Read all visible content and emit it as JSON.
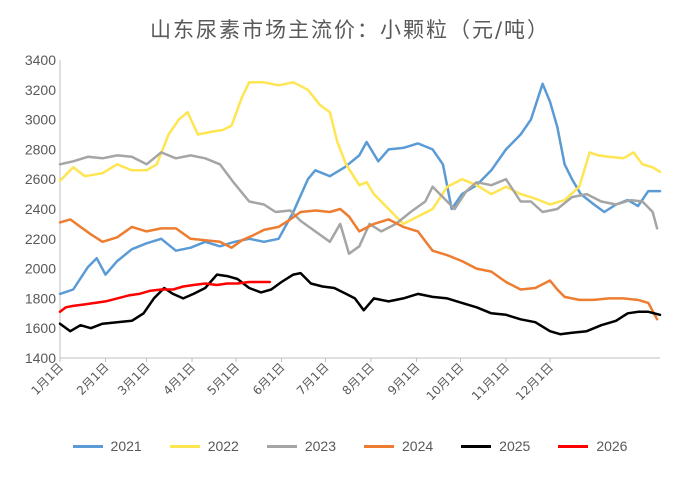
{
  "chart_data": {
    "type": "line",
    "title": "山东尿素市场主流价：小颗粒（元/吨）",
    "xlabel": "",
    "ylabel": "",
    "ylim": [
      1400,
      3400
    ],
    "yticks": [
      1400,
      1600,
      1800,
      2000,
      2200,
      2400,
      2600,
      2800,
      3000,
      3200,
      3400
    ],
    "x_categories": [
      "1月1日",
      "2月1日",
      "3月1日",
      "4月1日",
      "5月1日",
      "6月1日",
      "7月1日",
      "8月1日",
      "9月1日",
      "10月1日",
      "11月1日",
      "12月1日"
    ],
    "x_unit": "day_of_year",
    "grid": false,
    "legend_position": "bottom",
    "series": [
      {
        "name": "2021",
        "color": "#5B9BD5",
        "points": [
          [
            1,
            1830
          ],
          [
            10,
            1860
          ],
          [
            20,
            2010
          ],
          [
            26,
            2070
          ],
          [
            32,
            1960
          ],
          [
            40,
            2050
          ],
          [
            50,
            2130
          ],
          [
            60,
            2170
          ],
          [
            70,
            2200
          ],
          [
            80,
            2120
          ],
          [
            90,
            2140
          ],
          [
            100,
            2180
          ],
          [
            110,
            2150
          ],
          [
            120,
            2180
          ],
          [
            130,
            2200
          ],
          [
            140,
            2180
          ],
          [
            150,
            2200
          ],
          [
            160,
            2380
          ],
          [
            170,
            2600
          ],
          [
            175,
            2660
          ],
          [
            185,
            2620
          ],
          [
            195,
            2680
          ],
          [
            205,
            2760
          ],
          [
            210,
            2850
          ],
          [
            218,
            2720
          ],
          [
            225,
            2800
          ],
          [
            235,
            2810
          ],
          [
            245,
            2840
          ],
          [
            255,
            2800
          ],
          [
            262,
            2700
          ],
          [
            268,
            2400
          ],
          [
            275,
            2500
          ],
          [
            285,
            2560
          ],
          [
            295,
            2660
          ],
          [
            305,
            2800
          ],
          [
            315,
            2900
          ],
          [
            322,
            3000
          ],
          [
            330,
            3240
          ],
          [
            335,
            3120
          ],
          [
            340,
            2950
          ],
          [
            345,
            2700
          ],
          [
            350,
            2600
          ],
          [
            356,
            2500
          ],
          [
            365,
            2430
          ],
          [
            372,
            2380
          ],
          [
            380,
            2430
          ],
          [
            388,
            2460
          ],
          [
            395,
            2420
          ],
          [
            402,
            2520
          ],
          [
            410,
            2520
          ]
        ]
      },
      {
        "name": "2022",
        "color": "#FFE552",
        "points": [
          [
            1,
            2590
          ],
          [
            10,
            2680
          ],
          [
            18,
            2620
          ],
          [
            30,
            2640
          ],
          [
            40,
            2700
          ],
          [
            50,
            2660
          ],
          [
            60,
            2660
          ],
          [
            67,
            2700
          ],
          [
            75,
            2900
          ],
          [
            82,
            3000
          ],
          [
            88,
            3050
          ],
          [
            95,
            2900
          ],
          [
            105,
            2920
          ],
          [
            112,
            2930
          ],
          [
            118,
            2960
          ],
          [
            125,
            3150
          ],
          [
            130,
            3250
          ],
          [
            140,
            3250
          ],
          [
            150,
            3230
          ],
          [
            160,
            3250
          ],
          [
            170,
            3200
          ],
          [
            178,
            3100
          ],
          [
            185,
            3050
          ],
          [
            190,
            2850
          ],
          [
            196,
            2700
          ],
          [
            205,
            2560
          ],
          [
            210,
            2580
          ],
          [
            215,
            2500
          ],
          [
            225,
            2400
          ],
          [
            235,
            2300
          ],
          [
            245,
            2350
          ],
          [
            255,
            2400
          ],
          [
            265,
            2550
          ],
          [
            275,
            2600
          ],
          [
            285,
            2560
          ],
          [
            295,
            2500
          ],
          [
            305,
            2550
          ],
          [
            315,
            2500
          ],
          [
            325,
            2470
          ],
          [
            335,
            2430
          ],
          [
            345,
            2460
          ],
          [
            355,
            2550
          ],
          [
            362,
            2780
          ],
          [
            368,
            2760
          ],
          [
            375,
            2750
          ],
          [
            385,
            2740
          ],
          [
            392,
            2780
          ],
          [
            398,
            2700
          ],
          [
            405,
            2680
          ],
          [
            410,
            2650
          ]
        ]
      },
      {
        "name": "2023",
        "color": "#A5A5A5",
        "points": [
          [
            1,
            2700
          ],
          [
            10,
            2720
          ],
          [
            20,
            2750
          ],
          [
            30,
            2740
          ],
          [
            40,
            2760
          ],
          [
            50,
            2750
          ],
          [
            60,
            2700
          ],
          [
            70,
            2780
          ],
          [
            80,
            2740
          ],
          [
            90,
            2760
          ],
          [
            100,
            2740
          ],
          [
            110,
            2700
          ],
          [
            120,
            2570
          ],
          [
            130,
            2450
          ],
          [
            140,
            2430
          ],
          [
            148,
            2380
          ],
          [
            158,
            2390
          ],
          [
            165,
            2320
          ],
          [
            175,
            2250
          ],
          [
            185,
            2180
          ],
          [
            192,
            2300
          ],
          [
            198,
            2100
          ],
          [
            205,
            2150
          ],
          [
            212,
            2300
          ],
          [
            220,
            2250
          ],
          [
            230,
            2300
          ],
          [
            240,
            2380
          ],
          [
            250,
            2450
          ],
          [
            255,
            2550
          ],
          [
            262,
            2480
          ],
          [
            270,
            2400
          ],
          [
            278,
            2520
          ],
          [
            285,
            2580
          ],
          [
            295,
            2560
          ],
          [
            305,
            2600
          ],
          [
            315,
            2450
          ],
          [
            322,
            2450
          ],
          [
            330,
            2380
          ],
          [
            340,
            2400
          ],
          [
            350,
            2480
          ],
          [
            360,
            2500
          ],
          [
            370,
            2450
          ],
          [
            380,
            2430
          ],
          [
            390,
            2460
          ],
          [
            398,
            2450
          ],
          [
            405,
            2380
          ],
          [
            408,
            2270
          ]
        ]
      },
      {
        "name": "2024",
        "color": "#ED7D31",
        "points": [
          [
            1,
            2310
          ],
          [
            8,
            2330
          ],
          [
            15,
            2280
          ],
          [
            22,
            2230
          ],
          [
            30,
            2180
          ],
          [
            40,
            2210
          ],
          [
            50,
            2280
          ],
          [
            60,
            2250
          ],
          [
            70,
            2270
          ],
          [
            80,
            2270
          ],
          [
            90,
            2200
          ],
          [
            100,
            2190
          ],
          [
            110,
            2180
          ],
          [
            118,
            2140
          ],
          [
            125,
            2190
          ],
          [
            132,
            2220
          ],
          [
            140,
            2260
          ],
          [
            150,
            2280
          ],
          [
            158,
            2330
          ],
          [
            165,
            2380
          ],
          [
            175,
            2390
          ],
          [
            185,
            2380
          ],
          [
            192,
            2400
          ],
          [
            198,
            2350
          ],
          [
            205,
            2250
          ],
          [
            215,
            2300
          ],
          [
            225,
            2330
          ],
          [
            235,
            2280
          ],
          [
            245,
            2250
          ],
          [
            255,
            2120
          ],
          [
            265,
            2090
          ],
          [
            275,
            2050
          ],
          [
            285,
            2000
          ],
          [
            295,
            1980
          ],
          [
            305,
            1910
          ],
          [
            315,
            1860
          ],
          [
            325,
            1870
          ],
          [
            335,
            1920
          ],
          [
            340,
            1860
          ],
          [
            345,
            1810
          ],
          [
            355,
            1790
          ],
          [
            365,
            1790
          ],
          [
            375,
            1800
          ],
          [
            385,
            1800
          ],
          [
            395,
            1790
          ],
          [
            402,
            1770
          ],
          [
            408,
            1660
          ]
        ]
      },
      {
        "name": "2025",
        "color": "#000000",
        "points": [
          [
            1,
            1630
          ],
          [
            8,
            1580
          ],
          [
            15,
            1620
          ],
          [
            22,
            1600
          ],
          [
            30,
            1630
          ],
          [
            40,
            1640
          ],
          [
            50,
            1650
          ],
          [
            58,
            1700
          ],
          [
            65,
            1800
          ],
          [
            72,
            1870
          ],
          [
            78,
            1830
          ],
          [
            85,
            1800
          ],
          [
            92,
            1830
          ],
          [
            100,
            1870
          ],
          [
            108,
            1960
          ],
          [
            115,
            1950
          ],
          [
            122,
            1930
          ],
          [
            130,
            1870
          ],
          [
            138,
            1840
          ],
          [
            145,
            1860
          ],
          [
            152,
            1910
          ],
          [
            160,
            1960
          ],
          [
            165,
            1970
          ],
          [
            172,
            1900
          ],
          [
            180,
            1880
          ],
          [
            188,
            1870
          ],
          [
            196,
            1830
          ],
          [
            202,
            1800
          ],
          [
            208,
            1720
          ],
          [
            215,
            1800
          ],
          [
            225,
            1780
          ],
          [
            235,
            1800
          ],
          [
            245,
            1830
          ],
          [
            255,
            1810
          ],
          [
            265,
            1800
          ],
          [
            275,
            1770
          ],
          [
            285,
            1740
          ],
          [
            295,
            1700
          ],
          [
            305,
            1690
          ],
          [
            315,
            1660
          ],
          [
            325,
            1640
          ],
          [
            335,
            1580
          ],
          [
            342,
            1560
          ],
          [
            350,
            1570
          ],
          [
            360,
            1580
          ],
          [
            370,
            1620
          ],
          [
            380,
            1650
          ],
          [
            388,
            1700
          ],
          [
            395,
            1710
          ],
          [
            402,
            1710
          ],
          [
            410,
            1690
          ]
        ]
      },
      {
        "name": "2026",
        "color": "#FF0000",
        "points": [
          [
            1,
            1710
          ],
          [
            5,
            1740
          ],
          [
            10,
            1750
          ],
          [
            18,
            1760
          ],
          [
            25,
            1770
          ],
          [
            32,
            1780
          ],
          [
            40,
            1800
          ],
          [
            48,
            1820
          ],
          [
            55,
            1830
          ],
          [
            62,
            1850
          ],
          [
            70,
            1860
          ],
          [
            78,
            1860
          ],
          [
            85,
            1880
          ],
          [
            92,
            1890
          ],
          [
            100,
            1900
          ],
          [
            108,
            1890
          ],
          [
            115,
            1900
          ],
          [
            122,
            1900
          ],
          [
            130,
            1910
          ],
          [
            138,
            1910
          ],
          [
            144,
            1910
          ]
        ]
      }
    ]
  }
}
